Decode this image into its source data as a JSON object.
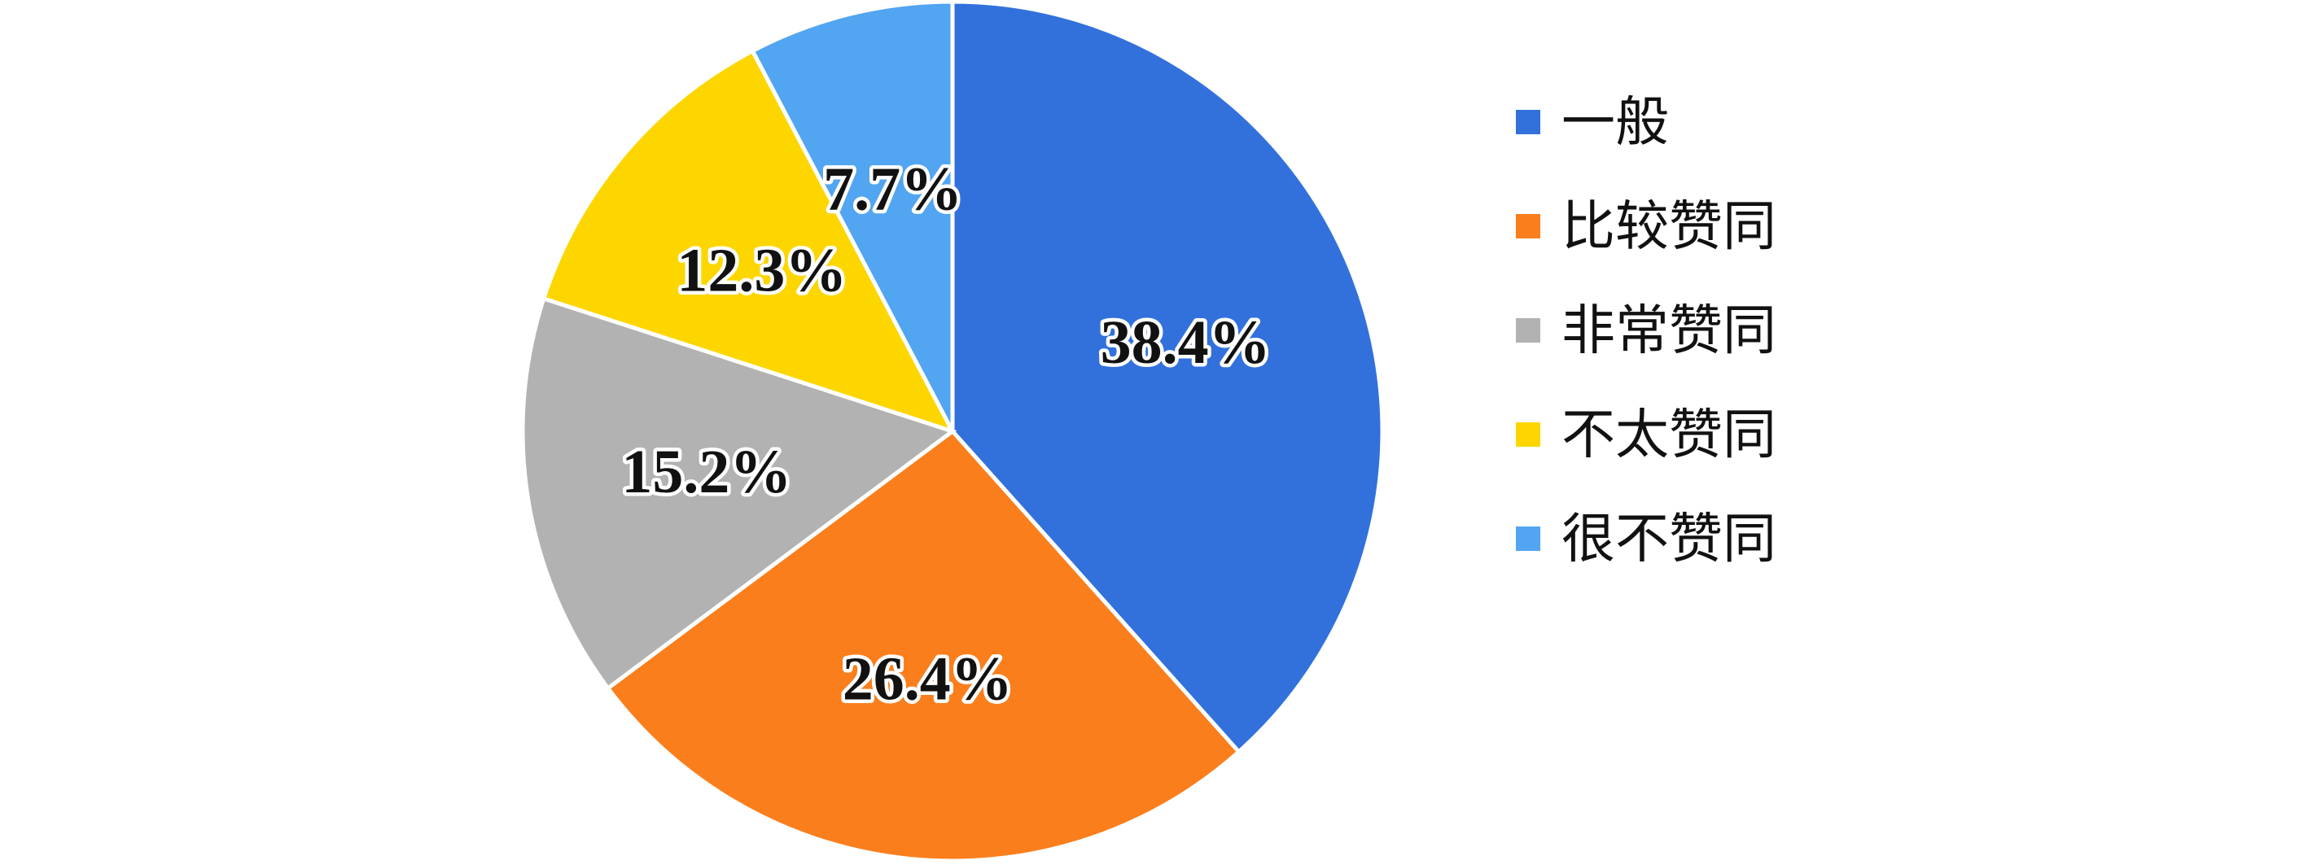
{
  "chart_data": {
    "type": "pie",
    "title": "",
    "legend_position": "right",
    "start_angle": "12 o'clock",
    "direction": "clockwise",
    "categories": [
      "一般",
      "比较赞同",
      "非常赞同",
      "不太赞同",
      "很不赞同"
    ],
    "values": [
      38.4,
      26.4,
      15.2,
      12.3,
      7.7
    ],
    "labels": [
      "38.4%",
      "26.4%",
      "15.2%",
      "12.3%",
      "7.7%"
    ],
    "colors": [
      "#3271DC",
      "#FB7E1C",
      "#B2B2B2",
      "#FDD600",
      "#52A5F0"
    ]
  }
}
